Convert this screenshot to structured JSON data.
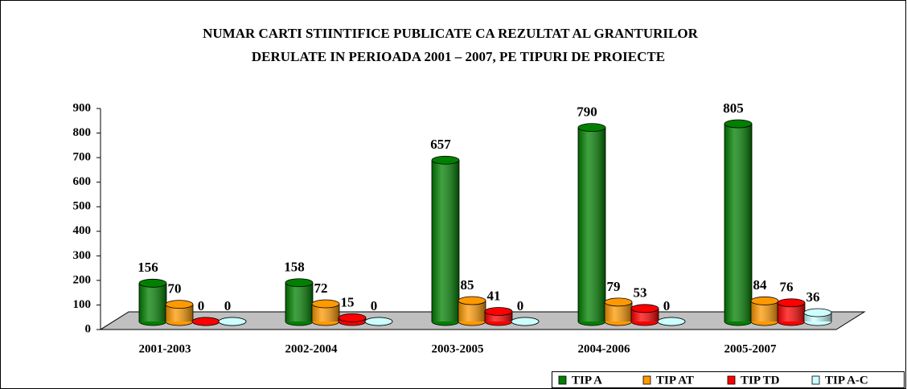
{
  "chart_data": {
    "type": "bar3d",
    "title": [
      "NUMAR CARTI STIINTIFICE PUBLICATE  CA REZULTAT AL GRANTURILOR",
      "DERULATE IN PERIOADA 2001 – 2007, PE TIPURI DE PROIECTE"
    ],
    "categories": [
      "2001-2003",
      "2002-2004",
      "2003-2005",
      "2004-2006",
      "2005-2007"
    ],
    "series": [
      {
        "name": "TIP A",
        "color": "#008000",
        "values": [
          156,
          158,
          657,
          790,
          805
        ]
      },
      {
        "name": "TIP AT",
        "color": "#ff9900",
        "values": [
          70,
          72,
          85,
          79,
          84
        ]
      },
      {
        "name": "TIP TD",
        "color": "#ff0000",
        "values": [
          0,
          15,
          41,
          53,
          76
        ]
      },
      {
        "name": "TIP A-C",
        "color": "#ccffff",
        "values": [
          0,
          0,
          0,
          0,
          36
        ]
      }
    ],
    "ylim": [
      0,
      900
    ],
    "yticks": [
      0,
      100,
      200,
      300,
      400,
      500,
      600,
      700,
      800,
      900
    ],
    "legend": "bottom-right"
  }
}
